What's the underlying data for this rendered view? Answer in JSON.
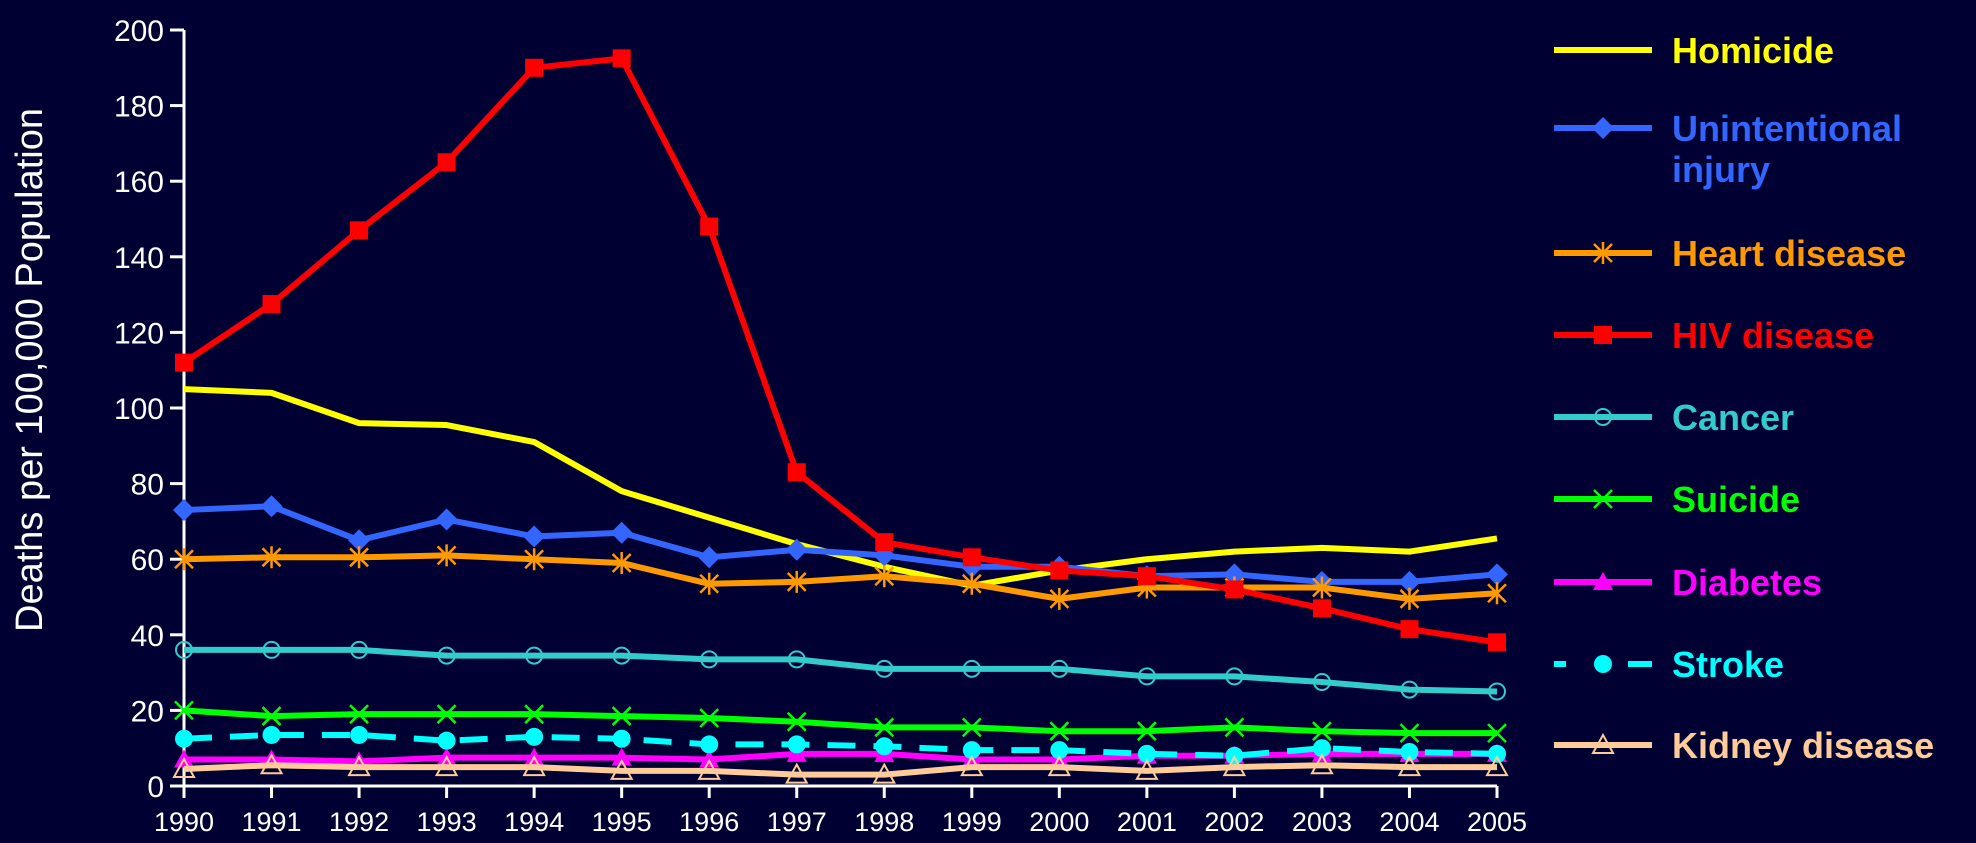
{
  "chart_data": {
    "type": "line",
    "title": "",
    "xlabel": "",
    "ylabel": "Deaths per 100,000 Population",
    "x": [
      1990,
      1991,
      1992,
      1993,
      1994,
      1995,
      1996,
      1997,
      1998,
      1999,
      2000,
      2001,
      2002,
      2003,
      2004,
      2005
    ],
    "x_tick_labels": [
      "1990",
      "1991",
      "1992",
      "1993",
      "1994",
      "1995",
      "1996",
      "1997",
      "1998",
      "1999",
      "2000",
      "2001",
      "2002",
      "2003",
      "2004",
      "2005"
    ],
    "ylim": [
      0,
      200
    ],
    "y_ticks": [
      0,
      20,
      40,
      60,
      80,
      100,
      120,
      140,
      160,
      180,
      200
    ],
    "grid": false,
    "legend_position": "right",
    "series": [
      {
        "name": "Homicide",
        "color": "#ffff00",
        "marker": "none",
        "dashed": false,
        "values": [
          105,
          104,
          96,
          95.5,
          91,
          78,
          71,
          64,
          58,
          53,
          57,
          60,
          62,
          63,
          62,
          65.5
        ]
      },
      {
        "name": "Unintentional injury",
        "color": "#3366ff",
        "marker": "diamond",
        "dashed": false,
        "values": [
          73,
          74,
          65,
          70.5,
          66,
          67,
          60.5,
          62.5,
          61,
          58,
          58,
          55.5,
          56,
          54,
          54,
          56
        ]
      },
      {
        "name": "Heart disease",
        "color": "#ff9900",
        "marker": "asterisk",
        "dashed": false,
        "values": [
          60,
          60.5,
          60.5,
          61,
          60,
          59,
          53.5,
          54,
          55.5,
          53.5,
          49.5,
          52.5,
          52.5,
          52.5,
          49.5,
          51
        ]
      },
      {
        "name": "HIV disease",
        "color": "#ff0000",
        "marker": "square",
        "dashed": false,
        "values": [
          112,
          127.5,
          147,
          165,
          190,
          192.5,
          148,
          83,
          64.5,
          60.5,
          57,
          55.5,
          52,
          47,
          41.5,
          38
        ]
      },
      {
        "name": "Cancer",
        "color": "#33cccc",
        "marker": "circle-open",
        "dashed": false,
        "values": [
          36,
          36,
          36,
          34.5,
          34.5,
          34.5,
          33.5,
          33.5,
          31,
          31,
          31,
          29,
          29,
          27.5,
          25.5,
          25
        ]
      },
      {
        "name": "Suicide",
        "color": "#00ff00",
        "marker": "x",
        "dashed": false,
        "values": [
          20,
          18.5,
          19,
          19,
          19,
          18.5,
          18,
          17,
          15.5,
          15.5,
          14.5,
          14.5,
          15.5,
          14.5,
          14,
          14
        ]
      },
      {
        "name": "Diabetes",
        "color": "#ff00ff",
        "marker": "triangle",
        "dashed": false,
        "values": [
          7,
          7,
          6.5,
          7.5,
          7.5,
          7.5,
          7,
          8.5,
          8.5,
          7,
          7,
          8,
          8,
          8.5,
          8.5,
          8.5
        ]
      },
      {
        "name": "Stroke",
        "color": "#00ffff",
        "marker": "circle",
        "dashed": true,
        "values": [
          12.5,
          13.5,
          13.5,
          12,
          13,
          12.5,
          11,
          11,
          10.5,
          9.5,
          9.5,
          8.5,
          8,
          10,
          9,
          8.5
        ]
      },
      {
        "name": "Kidney disease",
        "color": "#ffcc99",
        "marker": "triangle-open",
        "dashed": false,
        "values": [
          4.5,
          5.5,
          5,
          5,
          5,
          4,
          4,
          3,
          3,
          5,
          5,
          4,
          5,
          5.5,
          5,
          5
        ]
      }
    ]
  }
}
